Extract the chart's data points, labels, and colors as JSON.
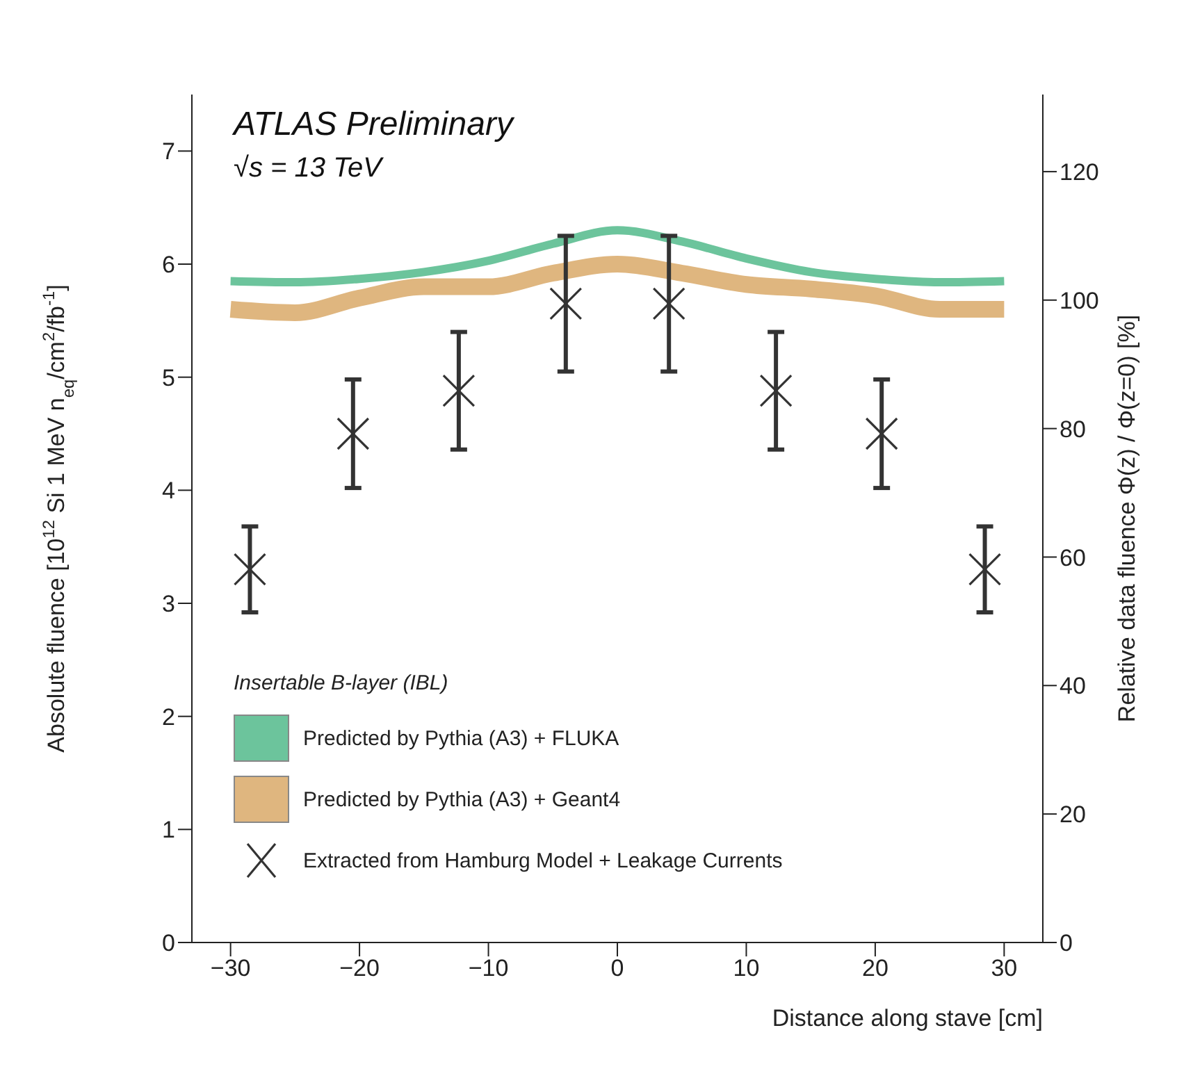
{
  "chart_data": {
    "type": "line",
    "xlabel": "Distance along stave [cm]",
    "ylabel": "Absolute fluence [10$^{12}$ Si 1 MeV n$_{eq}$/cm$^{2}$/fb$^{-1}$]",
    "y2label": "Relative data fluence Φ(z) / Φ(z=0) [%]",
    "legend_title": "Insertable B-layer (IBL)",
    "annotations": [
      "ATLAS Preliminary",
      "√s = 13 TeV"
    ],
    "xlim": [
      -33,
      33
    ],
    "xticks": [
      -30,
      -20,
      -10,
      0,
      10,
      20,
      30
    ],
    "ylim": [
      0,
      7.5
    ],
    "yticks": [
      0,
      1,
      2,
      3,
      4,
      5,
      6,
      7
    ],
    "y2lim": [
      0,
      132
    ],
    "y2ticks": [
      0,
      20,
      40,
      60,
      80,
      100,
      120
    ],
    "legend": "bottom left",
    "grid": false,
    "series": [
      {
        "name": "Predicted by Pythia (A3) + FLUKA",
        "color": "#6cc49c",
        "x": [
          -30,
          -25,
          -20,
          -15,
          -10,
          -5,
          0,
          5,
          10,
          15,
          20,
          25,
          30
        ],
        "values": [
          5.85,
          5.84,
          5.87,
          5.93,
          6.03,
          6.18,
          6.3,
          6.2,
          6.05,
          5.93,
          5.87,
          5.84,
          5.85
        ]
      },
      {
        "name": "Predicted by Pythia (A3) + Geant4",
        "color": "#dfb67f",
        "x": [
          -30,
          -25,
          -20,
          -15,
          -10,
          -5,
          0,
          5,
          10,
          15,
          20,
          25,
          30
        ],
        "values": [
          5.6,
          5.57,
          5.7,
          5.8,
          5.8,
          5.92,
          6.0,
          5.92,
          5.82,
          5.78,
          5.72,
          5.6,
          5.6
        ]
      },
      {
        "name": "Extracted from Hamburg Model + Leakage Currents",
        "type": "scatter",
        "color": "#333333",
        "marker": "cross",
        "x": [
          -28.5,
          -20.5,
          -12.3,
          -4,
          4,
          12.3,
          20.5,
          28.5
        ],
        "values": [
          3.3,
          4.5,
          4.88,
          5.65,
          5.65,
          4.88,
          4.5,
          3.3
        ],
        "errors": [
          0.38,
          0.48,
          0.52,
          0.6,
          0.6,
          0.52,
          0.48,
          0.38
        ]
      }
    ]
  }
}
